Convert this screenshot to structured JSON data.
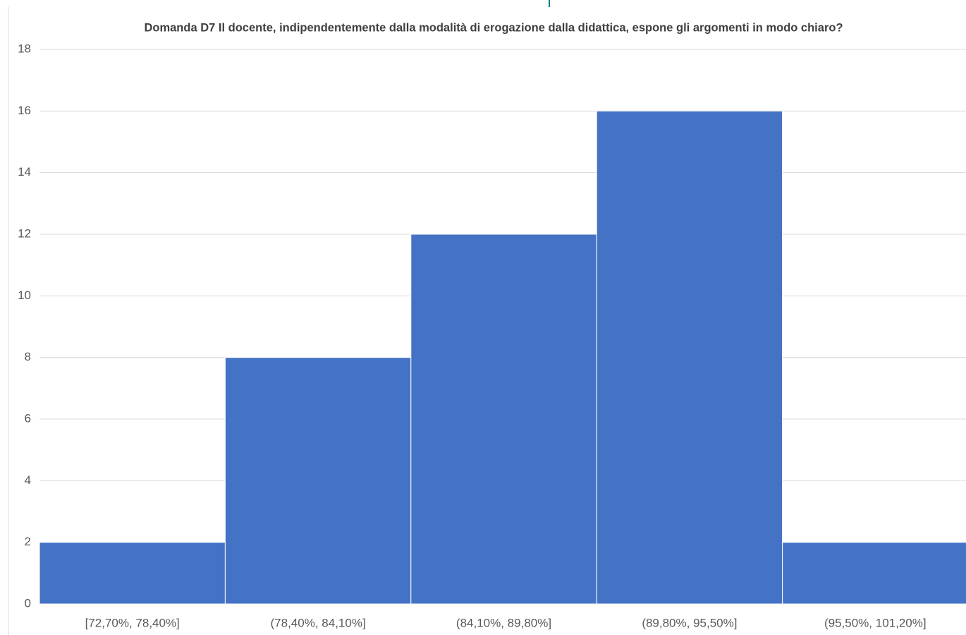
{
  "chart_data": {
    "type": "bar",
    "title": "Domanda D7 Il docente, indipendentemente dalla modalità di erogazione dalla didattica, espone gli argomenti in modo chiaro?",
    "categories": [
      "[72,70%, 78,40%]",
      "(78,40%, 84,10%]",
      "(84,10%, 89,80%]",
      "(89,80%, 95,50%]",
      "(95,50%, 101,20%]"
    ],
    "values": [
      2,
      8,
      12,
      16,
      2
    ],
    "color": "#4472c4",
    "ylim": [
      0,
      18
    ],
    "yticks": [
      0,
      2,
      4,
      6,
      8,
      10,
      12,
      14,
      16,
      18
    ],
    "grid": true
  }
}
